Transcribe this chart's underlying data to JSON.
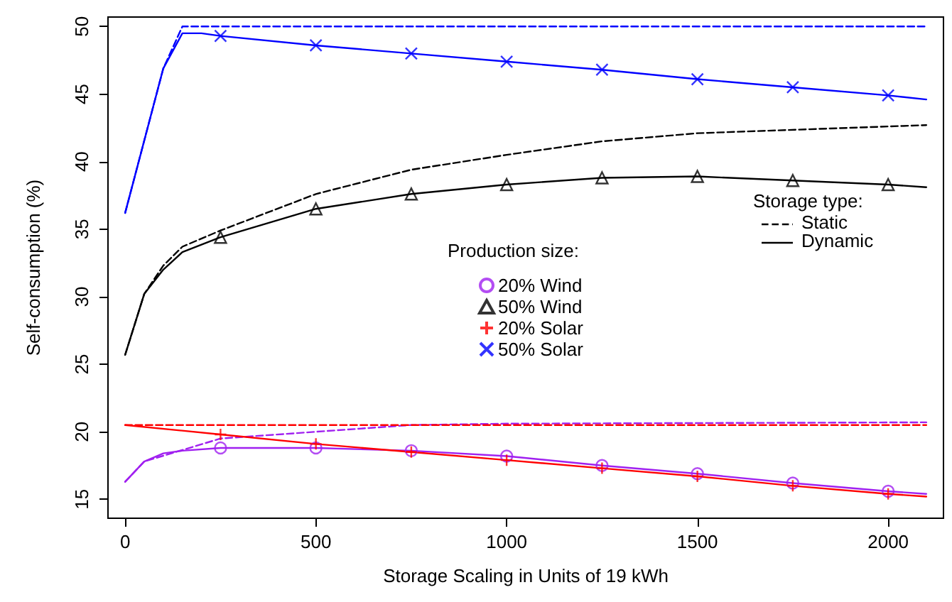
{
  "chart_data": {
    "type": "line",
    "xlabel": "Storage Scaling in Units of 19 kWh",
    "ylabel": "Self-consumption (%)",
    "legend_title": [
      "Production size:",
      "Storage type:"
    ],
    "xlim": [
      -45,
      2145
    ],
    "xticks": [
      0,
      500,
      1000,
      1500,
      2000
    ],
    "ylim": [
      13.6,
      50.7
    ],
    "yticks": [
      15,
      20,
      25,
      30,
      35,
      40,
      45,
      50
    ],
    "grid": false,
    "legend": "right",
    "annotations": [
      "Static",
      "Dynamic"
    ],
    "series": [
      {
        "type": "line",
        "line_style": "dashed",
        "marker": "none",
        "color": "#a020f0",
        "x": [
          0,
          50,
          250,
          500,
          750,
          1000,
          2100
        ],
        "values": [
          16.3,
          17.8,
          19.5,
          20.0,
          20.5,
          20.6,
          20.7
        ]
      },
      {
        "type": "line",
        "line_style": "dashed",
        "marker": "none",
        "color": "#000000",
        "x": [
          0,
          50,
          100,
          150,
          250,
          500,
          750,
          1000,
          1250,
          1500,
          2100
        ],
        "values": [
          25.7,
          30.2,
          32.3,
          33.7,
          34.9,
          37.6,
          39.4,
          40.5,
          41.5,
          42.1,
          42.7
        ]
      },
      {
        "type": "line",
        "line_style": "dashed",
        "marker": "none",
        "color": "#ff0000",
        "x": [
          0,
          2100
        ],
        "values": [
          20.5,
          20.5
        ]
      },
      {
        "type": "line",
        "line_style": "dashed",
        "marker": "none",
        "color": "#0000ff",
        "x": [
          0,
          100,
          150,
          2100
        ],
        "values": [
          36.2,
          46.9,
          50.0,
          50.0
        ]
      },
      {
        "type": "line",
        "line_style": "solid",
        "marker": "none",
        "color": "#a020f0",
        "x": [
          0,
          50,
          100,
          150,
          250,
          500,
          750,
          1000,
          1250,
          1500,
          1750,
          2000,
          2100
        ],
        "values": [
          16.3,
          17.8,
          18.4,
          18.6,
          18.8,
          18.8,
          18.6,
          18.2,
          17.5,
          16.9,
          16.2,
          15.6,
          15.4
        ]
      },
      {
        "type": "line",
        "line_style": "solid",
        "marker": "none",
        "color": "#000000",
        "x": [
          0,
          50,
          100,
          150,
          250,
          500,
          750,
          1000,
          1250,
          1500,
          1750,
          2000,
          2100
        ],
        "values": [
          25.7,
          30.2,
          32.0,
          33.3,
          34.4,
          36.5,
          37.6,
          38.3,
          38.8,
          38.9,
          38.6,
          38.3,
          38.1
        ]
      },
      {
        "type": "line",
        "line_style": "solid",
        "marker": "none",
        "color": "#ff0000",
        "x": [
          0,
          250,
          500,
          750,
          1000,
          1250,
          1500,
          1750,
          2000,
          2100
        ],
        "values": [
          20.5,
          19.8,
          19.1,
          18.5,
          17.9,
          17.3,
          16.7,
          16.0,
          15.4,
          15.2
        ]
      },
      {
        "type": "line",
        "line_style": "solid",
        "marker": "none",
        "color": "#0000ff",
        "x": [
          0,
          100,
          150,
          200,
          250,
          500,
          750,
          1000,
          1250,
          1500,
          1750,
          2000,
          2100
        ],
        "values": [
          36.2,
          46.9,
          49.5,
          49.5,
          49.3,
          48.6,
          48.0,
          47.4,
          46.8,
          46.1,
          45.5,
          44.9,
          44.6
        ]
      },
      {
        "name": "20% Wind",
        "type": "scatter",
        "marker": "circle",
        "color": "#a020f0",
        "x": [
          250,
          500,
          750,
          1000,
          1250,
          1500,
          1750,
          2000
        ],
        "values": [
          18.8,
          18.8,
          18.6,
          18.2,
          17.5,
          16.9,
          16.2,
          15.6
        ]
      },
      {
        "name": "50% Wind",
        "type": "scatter",
        "marker": "triangle",
        "color": "#000000",
        "x": [
          250,
          500,
          750,
          1000,
          1250,
          1500,
          1750,
          2000
        ],
        "values": [
          34.4,
          36.5,
          37.6,
          38.3,
          38.8,
          38.9,
          38.6,
          38.3
        ]
      },
      {
        "name": "20% Solar",
        "type": "scatter",
        "marker": "plus",
        "color": "#ff0000",
        "x": [
          250,
          500,
          750,
          1000,
          1250,
          1500,
          1750,
          2000
        ],
        "values": [
          19.8,
          19.1,
          18.5,
          17.9,
          17.3,
          16.7,
          16.0,
          15.4
        ]
      },
      {
        "name": "50% Solar",
        "type": "scatter",
        "marker": "cross",
        "color": "#0000ff",
        "x": [
          250,
          500,
          750,
          1000,
          1250,
          1500,
          1750,
          2000
        ],
        "values": [
          49.3,
          48.6,
          48.0,
          47.4,
          46.8,
          46.1,
          45.5,
          44.9
        ]
      }
    ]
  }
}
